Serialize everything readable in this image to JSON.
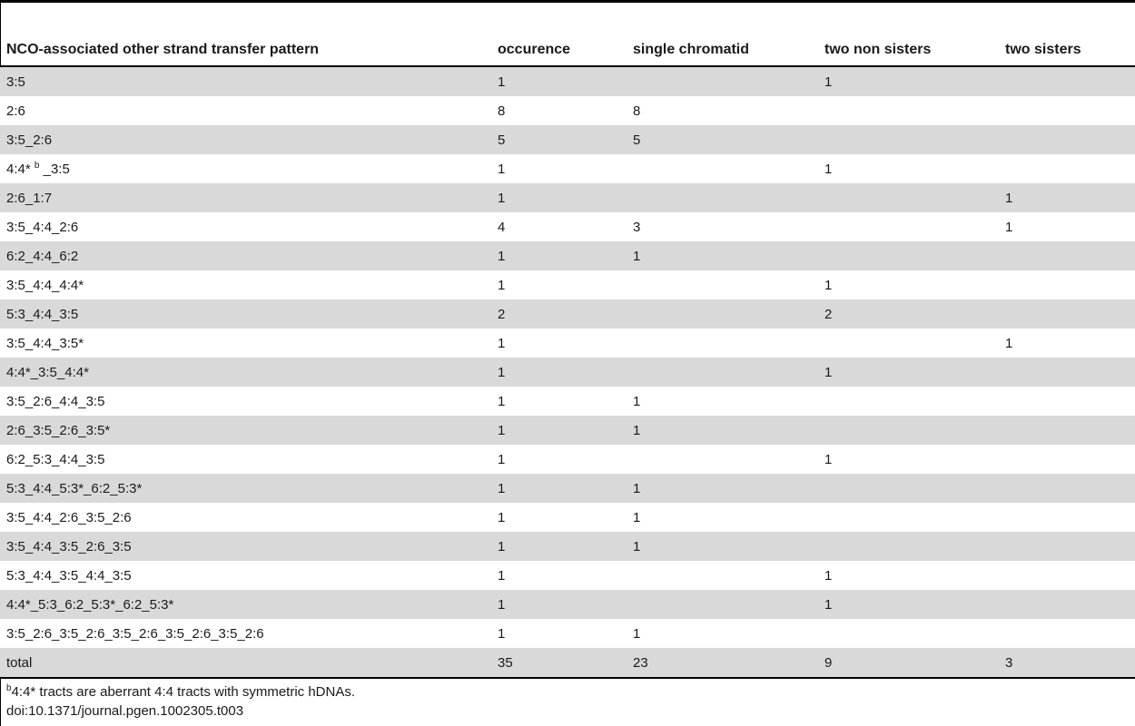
{
  "table": {
    "headers": [
      "NCO-associated other strand transfer pattern",
      "occurence",
      "single chromatid",
      "two non sisters",
      "two sisters"
    ],
    "rows": [
      {
        "pattern": "3:5",
        "occurence": "1",
        "single": "",
        "nonsisters": "1",
        "sisters": ""
      },
      {
        "pattern": "2:6",
        "occurence": "8",
        "single": "8",
        "nonsisters": "",
        "sisters": ""
      },
      {
        "pattern": "3:5_2:6",
        "occurence": "5",
        "single": "5",
        "nonsisters": "",
        "sisters": ""
      },
      {
        "pattern": "4:4*",
        "pattern_sup": "b",
        "pattern_rest": "_3:5",
        "occurence": "1",
        "single": "",
        "nonsisters": "1",
        "sisters": ""
      },
      {
        "pattern": "2:6_1:7",
        "occurence": "1",
        "single": "",
        "nonsisters": "",
        "sisters": "1"
      },
      {
        "pattern": "3:5_4:4_2:6",
        "occurence": "4",
        "single": "3",
        "nonsisters": "",
        "sisters": "1"
      },
      {
        "pattern": "6:2_4:4_6:2",
        "occurence": "1",
        "single": "1",
        "nonsisters": "",
        "sisters": ""
      },
      {
        "pattern": "3:5_4:4_4:4*",
        "occurence": "1",
        "single": "",
        "nonsisters": "1",
        "sisters": ""
      },
      {
        "pattern": "5:3_4:4_3:5",
        "occurence": "2",
        "single": "",
        "nonsisters": "2",
        "sisters": ""
      },
      {
        "pattern": "3:5_4:4_3:5*",
        "occurence": "1",
        "single": "",
        "nonsisters": "",
        "sisters": "1"
      },
      {
        "pattern": "4:4*_3:5_4:4*",
        "occurence": "1",
        "single": "",
        "nonsisters": "1",
        "sisters": ""
      },
      {
        "pattern": "3:5_2:6_4:4_3:5",
        "occurence": "1",
        "single": "1",
        "nonsisters": "",
        "sisters": ""
      },
      {
        "pattern": "2:6_3:5_2:6_3:5*",
        "occurence": "1",
        "single": "1",
        "nonsisters": "",
        "sisters": ""
      },
      {
        "pattern": "6:2_5:3_4:4_3:5",
        "occurence": "1",
        "single": "",
        "nonsisters": "1",
        "sisters": ""
      },
      {
        "pattern": "5:3_4:4_5:3*_6:2_5:3*",
        "occurence": "1",
        "single": "1",
        "nonsisters": "",
        "sisters": ""
      },
      {
        "pattern": "3:5_4:4_2:6_3:5_2:6",
        "occurence": "1",
        "single": "1",
        "nonsisters": "",
        "sisters": ""
      },
      {
        "pattern": "3:5_4:4_3:5_2:6_3:5",
        "occurence": "1",
        "single": "1",
        "nonsisters": "",
        "sisters": ""
      },
      {
        "pattern": "5:3_4:4_3:5_4:4_3:5",
        "occurence": "1",
        "single": "",
        "nonsisters": "1",
        "sisters": ""
      },
      {
        "pattern": "4:4*_5:3_6:2_5:3*_6:2_5:3*",
        "occurence": "1",
        "single": "",
        "nonsisters": "1",
        "sisters": ""
      },
      {
        "pattern": "3:5_2:6_3:5_2:6_3:5_2:6_3:5_2:6_3:5_2:6",
        "occurence": "1",
        "single": "1",
        "nonsisters": "",
        "sisters": ""
      }
    ],
    "total": {
      "pattern": "total",
      "occurence": "35",
      "single": "23",
      "nonsisters": "9",
      "sisters": "3"
    }
  },
  "footnotes": {
    "note_sup": "b",
    "note_text": "4:4* tracts are aberrant 4:4 tracts with symmetric hDNAs.",
    "doi": "doi:10.1371/journal.pgen.1002305.t003"
  }
}
